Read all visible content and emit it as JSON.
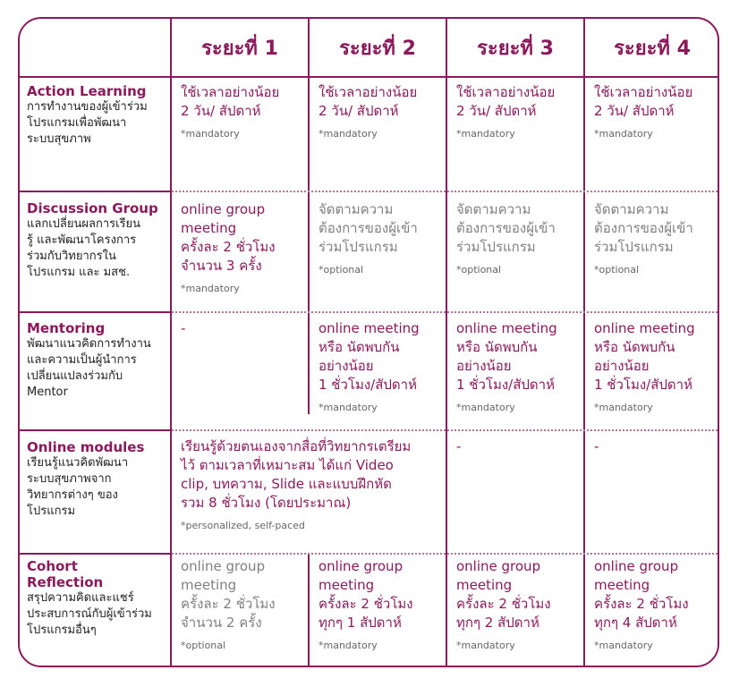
{
  "headers": [
    "ระยะที่ 1",
    "ระยะที่ 2",
    "ระยะที่ 3",
    "ระยะที่ 4"
  ],
  "rows": [
    {
      "title": [
        "Action Learning"
      ],
      "desc": [
        "การทำงานของผู้เข้าร่วม",
        "โปรแกรมเพื่อพัฒนา",
        "ระบบสุขภาพ"
      ],
      "cells": [
        {
          "lines": [
            "ใช้เวลาอย่างน้อย",
            "2 วัน/ สัปดาห์"
          ],
          "note": "*mandatory"
        },
        {
          "lines": [
            "ใช้เวลาอย่างน้อย",
            "2 วัน/ สัปดาห์"
          ],
          "note": "*mandatory"
        },
        {
          "lines": [
            "ใช้เวลาอย่างน้อย",
            "2 วัน/ สัปดาห์"
          ],
          "note": "*mandatory"
        },
        {
          "lines": [
            "ใช้เวลาอย่างน้อย",
            "2 วัน/ สัปดาห์"
          ],
          "note": "*mandatory"
        }
      ]
    },
    {
      "title": [
        "Discussion Group"
      ],
      "desc": [
        "แลกเปลี่ยนผลการเรียน",
        "รู้ และพัฒนาโครงการ",
        "ร่วมกับวิทยากรใน",
        "โปรแกรม และ มสช."
      ],
      "cells": [
        {
          "lines": [
            "online group",
            "meeting",
            "ครั้งละ 2 ชั่วโมง",
            "จำนวน 3 ครั้ง"
          ],
          "note": "*mandatory"
        },
        {
          "lines": [
            "จัดตามความ",
            "ต้องการของผู้เข้า",
            "ร่วมโปรแกรม"
          ],
          "note": "*optional"
        },
        {
          "lines": [
            "จัดตามความ",
            "ต้องการของผู้เข้า",
            "ร่วมโปรแกรม"
          ],
          "note": "*optional"
        },
        {
          "lines": [
            "จัดตามความ",
            "ต้องการของผู้เข้า",
            "ร่วมโปรแกรม"
          ],
          "note": "*optional"
        }
      ]
    },
    {
      "title": [
        "Mentoring"
      ],
      "desc": [
        "พัฒนาแนวคิดการทำงาน",
        "และความเป็นผู้นำการ",
        "เปลี่ยนแปลงร่วมกับ",
        "Mentor"
      ],
      "cells": [
        {
          "lines": [
            "-"
          ],
          "note": ""
        },
        {
          "lines": [
            "online meeting",
            "หรือ นัดพบกัน",
            "อย่างน้อย",
            "1 ชั่วโมง/สัปดาห์"
          ],
          "note": "*mandatory"
        },
        {
          "lines": [
            "online meeting",
            "หรือ นัดพบกัน",
            "อย่างน้อย",
            "1 ชั่วโมง/สัปดาห์"
          ],
          "note": "*mandatory"
        },
        {
          "lines": [
            "online meeting",
            "หรือ นัดพบกัน",
            "อย่างน้อย",
            "1 ชั่วโมง/สัปดาห์"
          ],
          "note": "*mandatory"
        }
      ]
    },
    {
      "title": [
        "Online modules"
      ],
      "desc": [
        "เรียนรู้แนวคิดพัฒนา",
        "ระบบสุขภาพจาก",
        "วิทยากรต่างๆ ของ",
        "โปรแกรม"
      ],
      "span_cell": {
        "lines": [
          "เรียนรู้ด้วยตนเองจากสื่อที่วิทยากรเตรียม",
          "ไว้ ตามเวลาที่เหมาะสม ได้แก่ Video",
          "clip, บทความ, Slide และแบบฝึกหัด",
          "รวม 8 ชั่วโมง (โดยประมาณ)"
        ],
        "note": "*personalized,  self-paced"
      },
      "cells": [
        {
          "lines": [
            "-"
          ],
          "note": ""
        },
        {
          "lines": [
            "-"
          ],
          "note": ""
        }
      ]
    },
    {
      "title": [
        "Cohort",
        "Reflection"
      ],
      "desc": [
        "สรุปความคิดและแชร์",
        "ประสบการณ์กับผู้เข้าร่วม",
        "โปรแกรมอื่นๆ"
      ],
      "cells": [
        {
          "lines": [
            "online group",
            "meeting",
            "ครั้งละ 2 ชั่วโมง",
            "จำนวน 2 ครั้ง"
          ],
          "note": "*optional"
        },
        {
          "lines": [
            "online group",
            "meeting",
            "ครั้งละ 2 ชั่วโมง",
            "ทุกๆ 1 สัปดาห์"
          ],
          "note": "*mandatory"
        },
        {
          "lines": [
            "online group",
            "meeting",
            "ครั้งละ 2 ชั่วโมง",
            "ทุกๆ 2 สัปดาห์"
          ],
          "note": "*mandatory"
        },
        {
          "lines": [
            "online group",
            "meeting",
            "ครั้งละ 2 ชั่วโมง",
            "ทุกๆ 4 สัปดาห์"
          ],
          "note": "*mandatory"
        }
      ]
    }
  ]
}
